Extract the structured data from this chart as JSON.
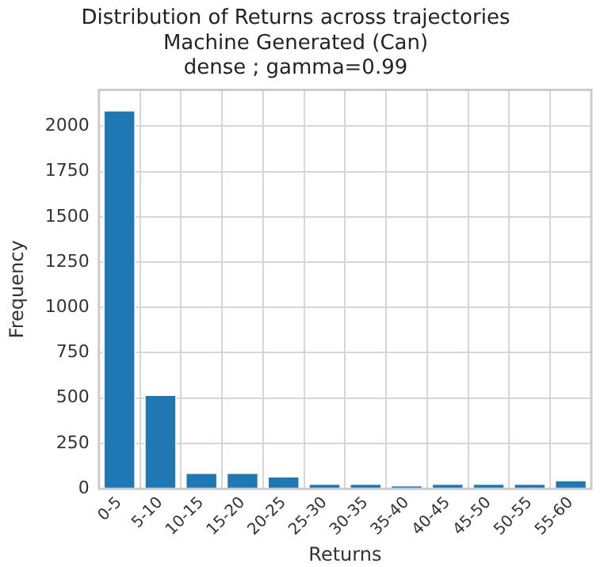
{
  "chart_data": {
    "type": "bar",
    "title": [
      "Distribution of Returns across trajectories",
      "Machine Generated (Can)",
      "dense ; gamma=0.99"
    ],
    "xlabel": "Returns",
    "ylabel": "Frequency",
    "categories": [
      "0-5",
      "5-10",
      "10-15",
      "15-20",
      "20-25",
      "25-30",
      "30-35",
      "35-40",
      "40-45",
      "45-50",
      "50-55",
      "55-60"
    ],
    "values": [
      2090,
      520,
      90,
      90,
      70,
      30,
      30,
      20,
      30,
      30,
      30,
      50
    ],
    "color": "#1f77b4",
    "ylim": [
      0,
      2200
    ],
    "yticks": [
      0,
      250,
      500,
      750,
      1000,
      1250,
      1500,
      1750,
      2000
    ],
    "grid": true
  }
}
